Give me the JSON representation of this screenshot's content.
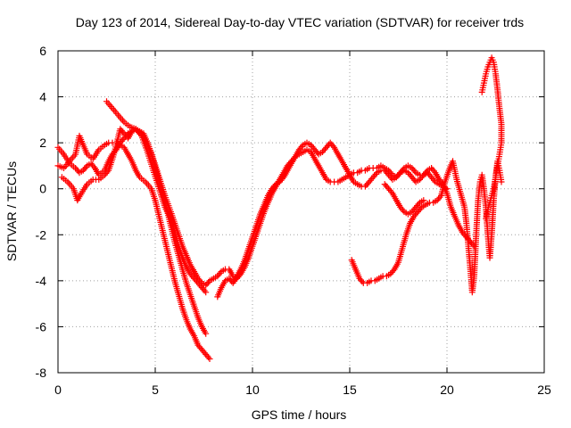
{
  "chart_data": {
    "type": "scatter",
    "title": "Day 123 of 2014, Sidereal Day-to-day VTEC variation (SDTVAR) for receiver trds",
    "xlabel": "GPS time / hours",
    "ylabel": "SDTVAR / TECUs",
    "xlim": [
      0,
      25
    ],
    "ylim": [
      -8,
      6
    ],
    "xticks": [
      0,
      5,
      10,
      15,
      20,
      25
    ],
    "yticks": [
      -8,
      -6,
      -4,
      -2,
      0,
      2,
      4,
      6
    ],
    "x_tick_labels": [
      "0",
      "5",
      "10",
      "15",
      "20",
      "25"
    ],
    "y_tick_labels": [
      "-8",
      "-6",
      "-4",
      "-2",
      "0",
      "2",
      "4",
      "6"
    ],
    "grid": true,
    "marker": "plus",
    "color": "#ff0000",
    "series": [
      {
        "x": [
          0.0,
          0.3,
          0.6,
          0.9,
          1.1,
          1.3,
          1.5,
          1.8,
          2.1,
          2.4,
          2.6,
          2.8,
          3.0,
          3.2,
          3.4,
          3.6,
          3.8,
          4.0,
          4.2,
          4.5,
          4.8,
          5.0,
          5.2,
          5.4,
          5.6,
          5.8,
          6.0,
          6.2,
          6.4,
          6.6,
          6.8,
          7.0,
          7.2,
          7.4,
          7.6,
          7.8
        ],
        "y": [
          1.0,
          0.9,
          1.2,
          1.5,
          2.3,
          1.9,
          1.5,
          1.3,
          1.7,
          1.9,
          2.0,
          2.0,
          2.0,
          1.9,
          1.8,
          1.5,
          1.2,
          0.8,
          0.5,
          0.3,
          0.0,
          -0.5,
          -1.2,
          -1.9,
          -2.6,
          -3.3,
          -4.0,
          -4.6,
          -5.2,
          -5.7,
          -6.1,
          -6.4,
          -6.8,
          -7.0,
          -7.2,
          -7.4
        ]
      },
      {
        "x": [
          0.0,
          0.3,
          0.6,
          0.9,
          1.1,
          1.3,
          1.5,
          1.7,
          1.9,
          2.1,
          2.4,
          2.6,
          2.8,
          3.0,
          3.2,
          3.4,
          3.6,
          3.8,
          4.0,
          4.2,
          4.4,
          4.6,
          4.8,
          5.0,
          5.2,
          5.4,
          5.6,
          5.8,
          6.0,
          6.2,
          6.4,
          6.6,
          6.8,
          7.0,
          7.2,
          7.4,
          7.6
        ],
        "y": [
          1.8,
          1.5,
          1.1,
          0.9,
          0.7,
          0.8,
          1.0,
          1.1,
          0.9,
          0.6,
          0.8,
          1.2,
          1.5,
          1.7,
          2.0,
          2.2,
          2.4,
          2.5,
          2.6,
          2.5,
          2.4,
          2.0,
          1.5,
          0.9,
          0.4,
          -0.2,
          -0.9,
          -1.6,
          -2.3,
          -2.9,
          -3.5,
          -4.1,
          -4.6,
          -5.1,
          -5.6,
          -6.0,
          -6.3
        ]
      },
      {
        "x": [
          0.2,
          0.5,
          0.8,
          1.0,
          1.2,
          1.5,
          1.8,
          2.1,
          2.4,
          2.6,
          2.8,
          3.0,
          3.2,
          3.4,
          3.6,
          3.8,
          4.0,
          4.3,
          4.6,
          4.9,
          5.2,
          5.5,
          5.8,
          6.0,
          6.2,
          6.4,
          6.6,
          6.8,
          7.0,
          7.2,
          7.4,
          7.6
        ],
        "y": [
          0.5,
          0.3,
          0.0,
          -0.5,
          -0.2,
          0.2,
          0.4,
          0.4,
          0.6,
          0.8,
          1.3,
          1.9,
          2.6,
          2.4,
          2.2,
          2.5,
          2.6,
          2.3,
          1.6,
          0.8,
          0.0,
          -0.8,
          -1.3,
          -1.9,
          -2.5,
          -3.0,
          -3.4,
          -3.7,
          -3.9,
          -4.1,
          -4.3,
          -4.5
        ]
      },
      {
        "x": [
          2.5,
          2.8,
          3.1,
          3.4,
          3.7,
          4.0,
          4.3,
          4.6,
          4.9,
          5.2,
          5.5,
          5.8,
          6.0,
          6.2,
          6.4,
          6.6,
          6.8,
          7.0,
          7.2,
          7.4,
          7.6,
          7.8,
          8.0,
          8.2,
          8.4,
          8.6,
          8.8,
          9.0,
          9.2,
          9.4,
          9.6,
          9.8,
          10.0,
          10.2,
          10.4,
          10.6,
          10.8,
          11.0,
          11.2,
          11.4,
          11.6,
          11.8,
          12.0,
          12.2,
          12.4,
          12.6,
          12.8,
          13.0,
          13.2,
          13.4,
          13.6,
          13.8,
          14.0,
          14.2,
          14.4,
          14.6,
          14.8,
          15.0,
          15.2,
          15.4,
          15.6,
          15.8,
          16.0,
          16.2,
          16.4,
          16.6,
          16.8,
          17.0,
          17.2,
          17.4,
          17.6,
          17.8,
          18.0,
          18.2,
          18.4,
          18.6,
          18.8,
          19.0,
          19.2,
          19.4,
          19.6,
          19.8,
          20.0,
          20.2,
          20.4,
          20.6,
          20.8,
          21.0,
          21.2,
          21.4
        ],
        "y": [
          3.8,
          3.5,
          3.2,
          2.9,
          2.7,
          2.6,
          2.4,
          2.0,
          1.3,
          0.5,
          -0.3,
          -1.0,
          -1.5,
          -2.0,
          -2.5,
          -2.9,
          -3.3,
          -3.6,
          -3.9,
          -4.1,
          -4.2,
          -4.0,
          -3.9,
          -3.8,
          -3.6,
          -3.5,
          -3.5,
          -3.8,
          -3.9,
          -3.7,
          -3.4,
          -3.0,
          -2.5,
          -2.0,
          -1.5,
          -1.0,
          -0.6,
          -0.2,
          0.1,
          0.4,
          0.7,
          1.0,
          1.2,
          1.4,
          1.5,
          1.6,
          1.7,
          1.6,
          1.3,
          1.0,
          0.7,
          0.4,
          0.3,
          0.3,
          0.3,
          0.4,
          0.5,
          0.6,
          0.7,
          0.7,
          0.8,
          0.8,
          0.9,
          0.9,
          0.9,
          1.0,
          0.9,
          0.8,
          0.6,
          0.5,
          0.7,
          0.9,
          1.0,
          0.9,
          0.7,
          0.6,
          0.6,
          0.8,
          0.9,
          0.7,
          0.4,
          0.2,
          -0.2,
          -0.8,
          -1.2,
          -1.6,
          -1.9,
          -2.1,
          -2.3,
          -2.5
        ]
      },
      {
        "x": [
          8.2,
          8.4,
          8.6,
          8.8,
          9.0,
          9.2,
          9.4,
          9.6,
          9.8,
          10.0,
          10.2,
          10.4,
          10.6,
          10.8,
          11.0,
          11.2,
          11.4,
          11.6,
          11.8,
          12.0,
          12.2,
          12.4,
          12.6,
          12.8,
          13.0,
          13.2,
          13.4,
          13.6,
          13.8,
          14.0,
          14.2,
          14.4,
          14.6,
          14.8,
          15.0,
          15.2,
          15.4,
          15.6,
          15.8,
          16.0,
          16.2,
          16.4,
          16.6,
          16.8,
          17.0,
          17.2,
          17.4,
          17.6,
          17.8,
          18.0,
          18.2,
          18.4,
          18.6,
          18.8,
          19.0,
          19.2,
          19.4,
          19.6,
          19.8,
          20.0
        ],
        "y": [
          -4.7,
          -4.3,
          -4.0,
          -3.9,
          -4.1,
          -3.8,
          -3.5,
          -3.1,
          -2.6,
          -2.1,
          -1.6,
          -1.1,
          -0.7,
          -0.3,
          0.0,
          0.2,
          0.3,
          0.5,
          0.8,
          1.1,
          1.4,
          1.7,
          1.9,
          2.0,
          1.9,
          1.7,
          1.5,
          1.6,
          1.8,
          2.0,
          1.8,
          1.5,
          1.2,
          0.9,
          0.6,
          0.3,
          0.2,
          0.1,
          0.1,
          0.3,
          0.5,
          0.7,
          0.8,
          0.8,
          0.6,
          0.4,
          0.5,
          0.7,
          0.8,
          0.7,
          0.5,
          0.3,
          0.4,
          0.6,
          0.7,
          0.5,
          0.3,
          0.2,
          0.1,
          0.0
        ]
      },
      {
        "x": [
          15.1,
          15.3,
          15.5,
          15.7,
          15.9,
          16.1,
          16.3,
          16.5,
          16.7,
          16.9,
          17.1,
          17.3,
          17.5,
          17.7,
          17.9,
          18.1,
          18.3,
          18.5,
          18.7,
          18.9,
          19.1,
          19.3,
          19.5,
          19.7,
          19.9,
          20.1,
          20.3,
          20.5,
          20.7,
          20.9,
          21.0,
          21.1,
          21.2,
          21.3,
          21.4,
          21.5,
          21.6,
          21.7,
          21.8,
          21.9,
          22.0,
          22.1,
          22.2,
          22.3,
          22.4,
          22.5,
          22.6,
          22.7,
          22.8
        ],
        "y": [
          -3.1,
          -3.5,
          -3.9,
          -4.1,
          -4.1,
          -4.0,
          -4.0,
          -3.9,
          -3.8,
          -3.8,
          -3.7,
          -3.5,
          -3.2,
          -2.6,
          -2.0,
          -1.5,
          -1.2,
          -1.0,
          -0.8,
          -0.7,
          -0.6,
          -0.6,
          -0.5,
          -0.3,
          0.3,
          0.8,
          1.2,
          0.4,
          -0.2,
          -0.8,
          -1.5,
          -2.5,
          -3.5,
          -4.5,
          -3.8,
          -2.0,
          -0.5,
          0.3,
          0.6,
          0.0,
          -0.8,
          -2.0,
          -3.0,
          -2.0,
          -0.5,
          0.5,
          1.2,
          0.8,
          0.3
        ]
      },
      {
        "x": [
          21.8,
          21.9,
          22.0,
          22.1,
          22.2,
          22.3,
          22.4,
          22.5,
          22.6,
          22.7,
          22.8,
          22.8,
          22.7,
          22.6,
          22.5,
          22.4,
          22.3,
          22.2,
          22.1,
          22.0
        ],
        "y": [
          4.2,
          4.6,
          5.0,
          5.3,
          5.5,
          5.7,
          5.5,
          5.0,
          4.3,
          3.5,
          2.8,
          2.0,
          1.5,
          1.0,
          0.5,
          0.0,
          -0.3,
          -0.6,
          -0.9,
          -1.3
        ]
      },
      {
        "x": [
          16.8,
          17.0,
          17.2,
          17.4,
          17.6,
          17.8,
          18.0,
          18.2,
          18.4,
          18.6,
          18.8
        ],
        "y": [
          0.2,
          0.0,
          -0.2,
          -0.5,
          -0.8,
          -1.0,
          -1.1,
          -1.0,
          -0.8,
          -0.6,
          -0.5
        ]
      }
    ]
  }
}
